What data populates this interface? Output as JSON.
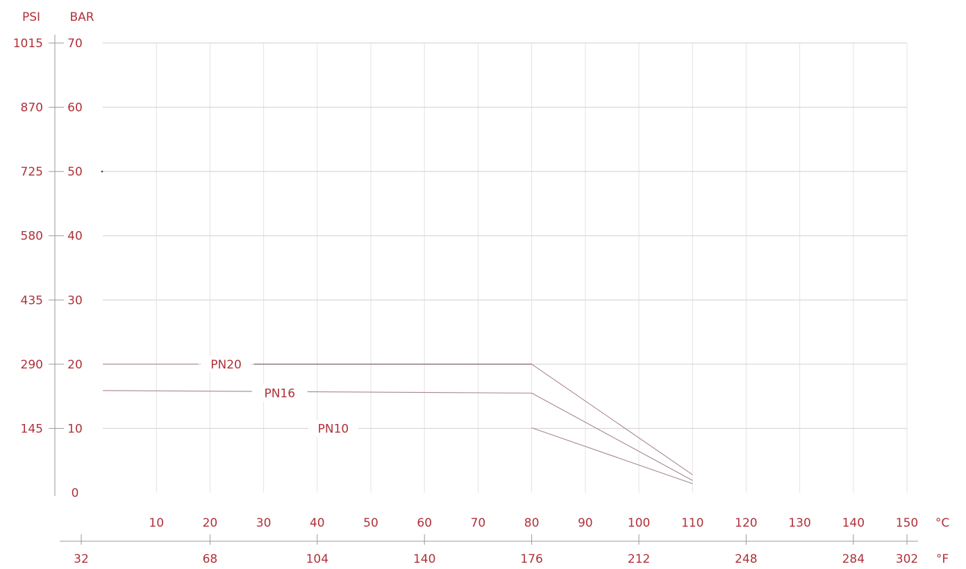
{
  "chart_data": {
    "type": "line",
    "title": "",
    "xlabel": "",
    "ylabel": "",
    "y_axis_units": [
      "PSI",
      "BAR"
    ],
    "y_bar_ticks": [
      "0",
      "10",
      "20",
      "30",
      "40",
      "50",
      "60",
      "70"
    ],
    "y_psi_ticks": [
      "",
      "145",
      "290",
      "435",
      "580",
      "725",
      "870",
      "1015"
    ],
    "x_celsius_ticks": [
      "10",
      "20",
      "30",
      "40",
      "50",
      "60",
      "70",
      "80",
      "90",
      "100",
      "110",
      "120",
      "130",
      "140",
      "150"
    ],
    "x_celsius_unit": "°C",
    "x_fahrenheit_ticks": [
      {
        "label": "32",
        "c": 0
      },
      {
        "label": "68",
        "c": 20
      },
      {
        "label": "104",
        "c": 40
      },
      {
        "label": "140",
        "c": 60
      },
      {
        "label": "176",
        "c": 80
      },
      {
        "label": "212",
        "c": 100
      },
      {
        "label": "248",
        "c": 120
      },
      {
        "label": "284",
        "c": 140
      },
      {
        "label": "302",
        "c": 150
      }
    ],
    "x_fahrenheit_unit": "°F",
    "xlim": [
      0,
      150
    ],
    "ylim": [
      0,
      70
    ],
    "grid": true,
    "series": [
      {
        "name": "PN20",
        "label_at": [
          23,
          20
        ],
        "points": [
          [
            0,
            20
          ],
          [
            80,
            20
          ],
          [
            110,
            2.8
          ]
        ]
      },
      {
        "name": "PN16",
        "label_at": [
          33,
          15.5
        ],
        "points": [
          [
            0,
            15.9
          ],
          [
            80,
            15.5
          ],
          [
            110,
            1.9
          ]
        ]
      },
      {
        "name": "PN10",
        "label_at": [
          43,
          10
        ],
        "points": [
          [
            80,
            10.1
          ],
          [
            110,
            1.4
          ]
        ]
      }
    ]
  }
}
